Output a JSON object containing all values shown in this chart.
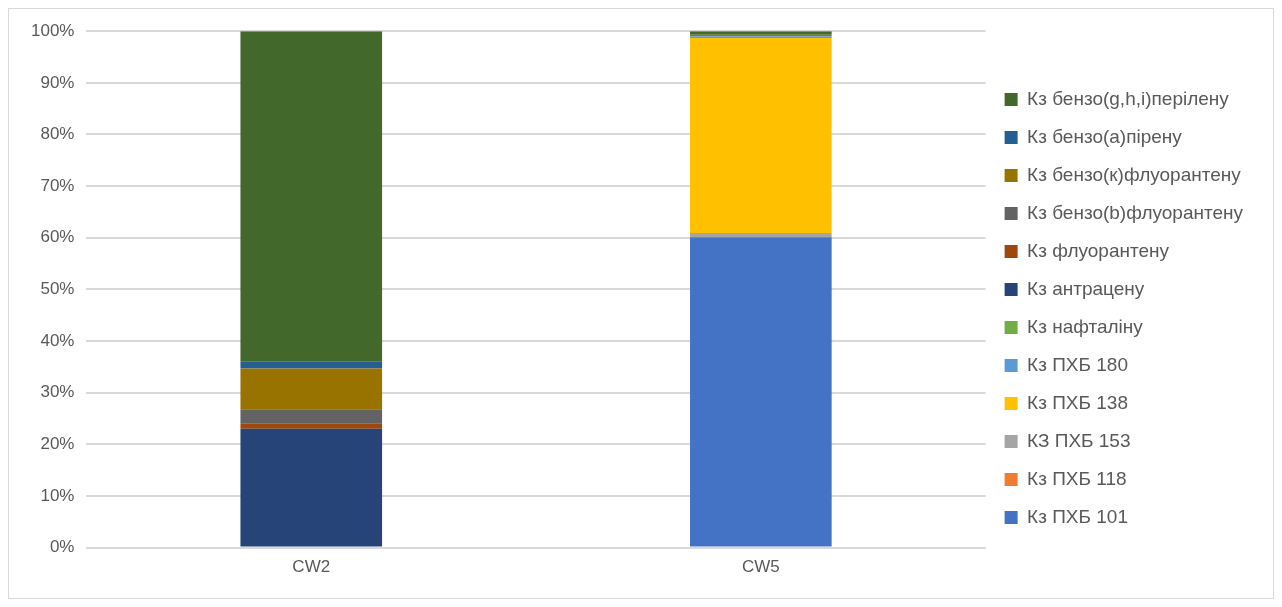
{
  "chart_data": {
    "type": "bar",
    "stacked": true,
    "categories": [
      "CW2",
      "CW5"
    ],
    "series": [
      {
        "name": "Кз ПХБ 101",
        "color": "#4472c4",
        "values": [
          0,
          60.1
        ]
      },
      {
        "name": "Кз ПХБ 118",
        "color": "#ed7d31",
        "values": [
          0,
          0
        ]
      },
      {
        "name": "КЗ ПХБ 153",
        "color": "#a5a5a5",
        "values": [
          0,
          0.8
        ]
      },
      {
        "name": "Кз ПХБ 138",
        "color": "#ffc000",
        "values": [
          0,
          37.8
        ]
      },
      {
        "name": "Кз ПХБ 180",
        "color": "#5b9bd5",
        "values": [
          0,
          0.3
        ]
      },
      {
        "name": "Кз нафталіну",
        "color": "#70ad47",
        "values": [
          0,
          0
        ]
      },
      {
        "name": "Кз антрацену",
        "color": "#264478",
        "values": [
          23,
          0
        ]
      },
      {
        "name": "Кз флуорантену",
        "color": "#9e480e",
        "values": [
          1.1,
          0
        ]
      },
      {
        "name": "Кз бензо(b)флуорантену",
        "color": "#636363",
        "values": [
          2.7,
          0
        ]
      },
      {
        "name": "Кз бензо(к)флуорантену",
        "color": "#997300",
        "values": [
          7.9,
          0.3
        ]
      },
      {
        "name": "Кз бензо(а)пірену",
        "color": "#255e91",
        "values": [
          1.4,
          0
        ]
      },
      {
        "name": "Кз бензо(g,h,i)перілену",
        "color": "#43682b",
        "values": [
          63.9,
          0.7
        ]
      }
    ],
    "ylim": [
      0,
      100
    ],
    "yticks": [
      {
        "value": 0,
        "label": "0%"
      },
      {
        "value": 10,
        "label": "10%"
      },
      {
        "value": 20,
        "label": "20%"
      },
      {
        "value": 30,
        "label": "30%"
      },
      {
        "value": 40,
        "label": "40%"
      },
      {
        "value": 50,
        "label": "50%"
      },
      {
        "value": 60,
        "label": "60%"
      },
      {
        "value": 70,
        "label": "70%"
      },
      {
        "value": 80,
        "label": "80%"
      },
      {
        "value": 90,
        "label": "90%"
      },
      {
        "value": 100,
        "label": "100%"
      }
    ],
    "grid": "y",
    "legend": "right"
  }
}
